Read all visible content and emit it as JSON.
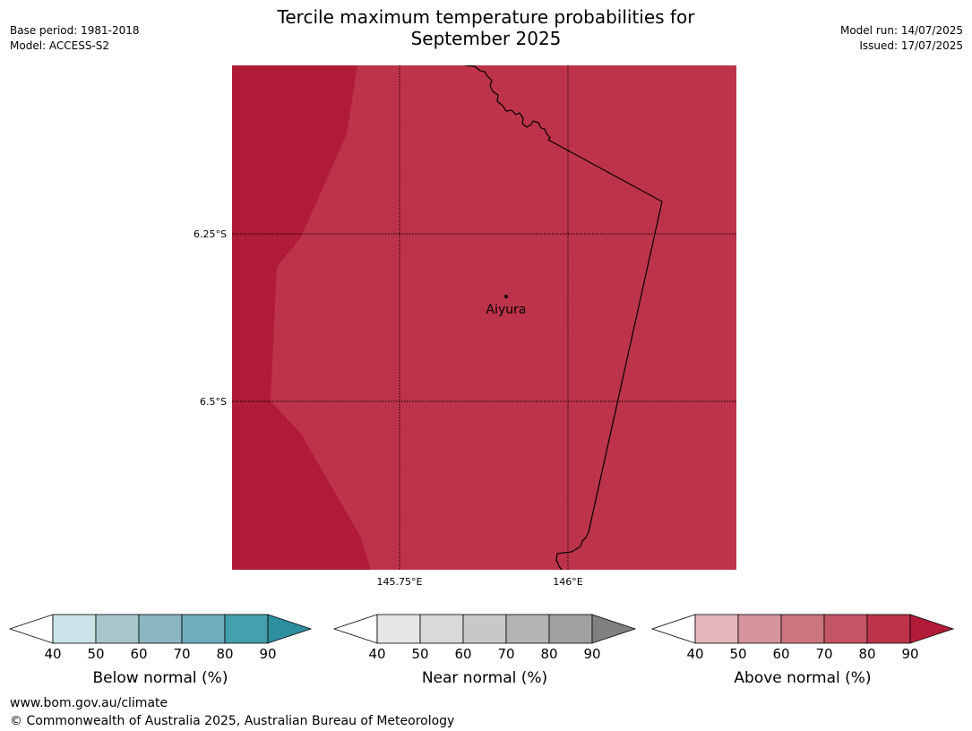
{
  "header": {
    "title_line1": "Tercile maximum temperature probabilities for",
    "title_line2": "September 2025",
    "base_period": "Base period: 1981-2018",
    "model": "Model: ACCESS-S2",
    "model_run": "Model run: 14/07/2025",
    "issued": "Issued: 17/07/2025"
  },
  "map": {
    "lat_labels": [
      "6.25°S",
      "6.5°S"
    ],
    "lon_labels": [
      "145.75°E",
      "146°E"
    ],
    "place": {
      "name": "Aiyura",
      "lon": 145.9,
      "lat": -6.34
    },
    "colors": {
      "high": "#b01c38",
      "mid": "#bd344a"
    }
  },
  "colorbars": [
    {
      "label": "Below normal (%)",
      "ticks": [
        "40",
        "50",
        "60",
        "70",
        "80",
        "90"
      ],
      "colors": [
        "#ffffff",
        "#cbe2e8",
        "#a8c7cc",
        "#8bb6c2",
        "#6fadbb",
        "#45a0ae",
        "#2d8fa0"
      ]
    },
    {
      "label": "Near normal (%)",
      "ticks": [
        "40",
        "50",
        "60",
        "70",
        "80",
        "90"
      ],
      "colors": [
        "#ffffff",
        "#e6e6e6",
        "#d9d9d9",
        "#c8c8c8",
        "#b4b4b4",
        "#a0a0a0",
        "#808080"
      ]
    },
    {
      "label": "Above normal (%)",
      "ticks": [
        "40",
        "50",
        "60",
        "70",
        "80",
        "90"
      ],
      "colors": [
        "#ffffff",
        "#e4b7bd",
        "#d6949d",
        "#cb757f",
        "#c35565",
        "#bd344a",
        "#b01c38"
      ]
    }
  ],
  "footer": {
    "url": "www.bom.gov.au/climate",
    "copyright": "© Commonwealth of Australia 2025, Australian Bureau of Meteorology"
  }
}
